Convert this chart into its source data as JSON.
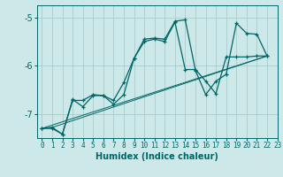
{
  "xlabel": "Humidex (Indice chaleur)",
  "bg_color": "#cce8e8",
  "grid_color": "#aacccc",
  "line_color": "#006666",
  "xlim": [
    -0.5,
    23
  ],
  "ylim": [
    -7.5,
    -4.75
  ],
  "yticks": [
    -7,
    -6,
    -5
  ],
  "xticks": [
    0,
    1,
    2,
    3,
    4,
    5,
    6,
    7,
    8,
    9,
    10,
    11,
    12,
    13,
    14,
    15,
    16,
    17,
    18,
    19,
    20,
    21,
    22,
    23
  ],
  "line1_zigzag": [
    [
      0,
      -7.3
    ],
    [
      1,
      -7.3
    ],
    [
      2,
      -7.42
    ],
    [
      3,
      -6.7
    ],
    [
      4,
      -6.85
    ],
    [
      5,
      -6.62
    ],
    [
      6,
      -6.62
    ],
    [
      7,
      -6.8
    ],
    [
      8,
      -6.6
    ],
    [
      9,
      -5.85
    ],
    [
      10,
      -5.45
    ],
    [
      11,
      -5.43
    ],
    [
      12,
      -5.45
    ],
    [
      13,
      -5.08
    ],
    [
      14,
      -5.05
    ],
    [
      15,
      -6.1
    ],
    [
      16,
      -6.6
    ],
    [
      17,
      -6.32
    ],
    [
      18,
      -6.18
    ],
    [
      19,
      -5.12
    ],
    [
      20,
      -5.33
    ],
    [
      21,
      -5.35
    ],
    [
      22,
      -5.8
    ]
  ],
  "line2_zigzag": [
    [
      0,
      -7.3
    ],
    [
      1,
      -7.28
    ],
    [
      2,
      -7.42
    ],
    [
      3,
      -6.72
    ],
    [
      4,
      -6.72
    ],
    [
      5,
      -6.6
    ],
    [
      6,
      -6.62
    ],
    [
      7,
      -6.72
    ],
    [
      8,
      -6.35
    ],
    [
      9,
      -5.85
    ],
    [
      10,
      -5.5
    ],
    [
      11,
      -5.45
    ],
    [
      12,
      -5.5
    ],
    [
      13,
      -5.1
    ],
    [
      14,
      -6.08
    ],
    [
      15,
      -6.08
    ],
    [
      16,
      -6.32
    ],
    [
      17,
      -6.58
    ],
    [
      18,
      -5.82
    ],
    [
      19,
      -5.82
    ],
    [
      20,
      -5.82
    ],
    [
      21,
      -5.8
    ],
    [
      22,
      -5.8
    ]
  ],
  "line3_trend": [
    [
      0,
      -7.3
    ],
    [
      22,
      -5.8
    ]
  ],
  "line4_trend": [
    [
      0,
      -7.3
    ],
    [
      1,
      -7.28
    ],
    [
      22,
      -5.8
    ]
  ]
}
